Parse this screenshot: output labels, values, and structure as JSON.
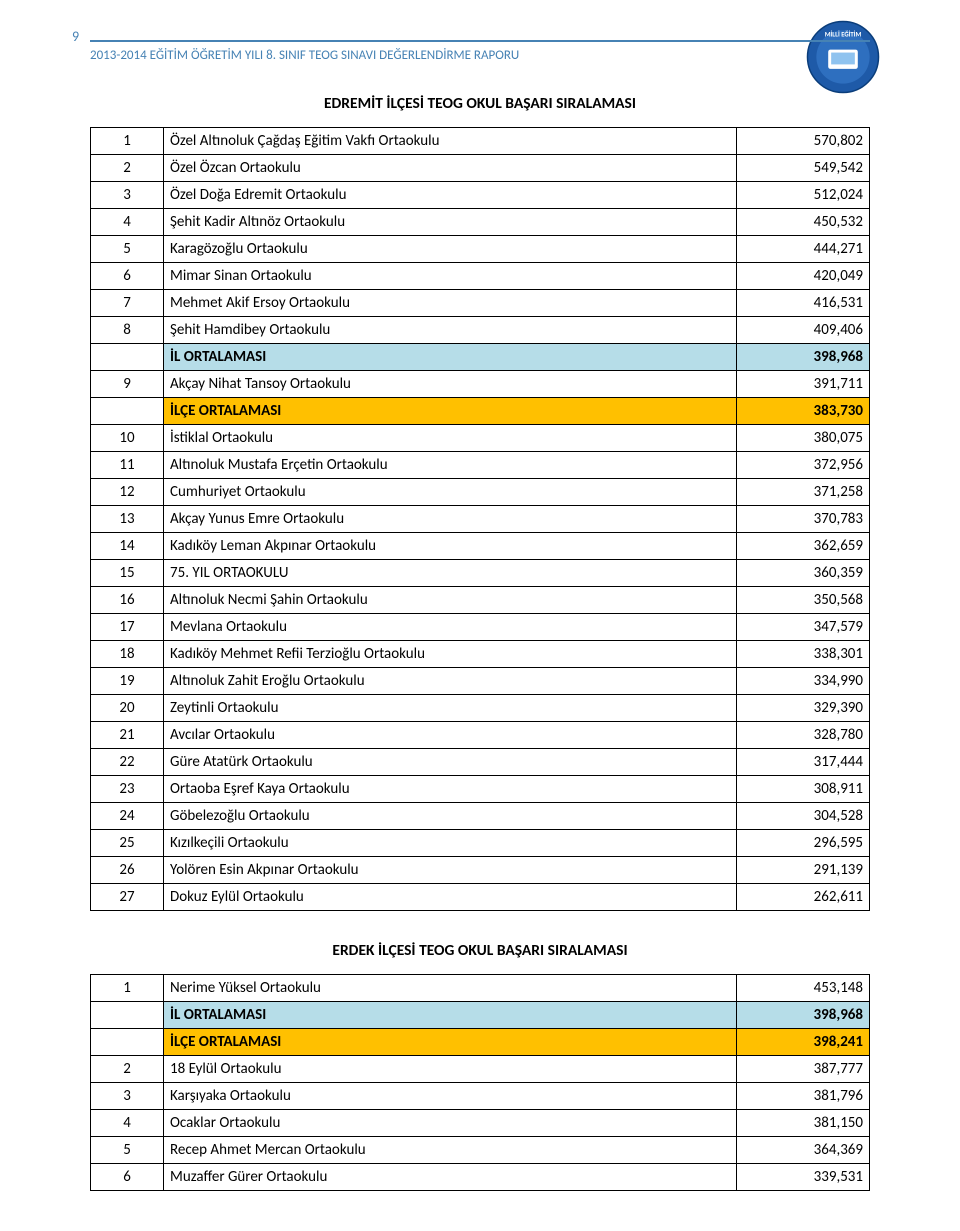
{
  "header": {
    "page_number": "9",
    "text": "2013-2014 EĞİTİM ÖĞRETİM YILI 8. SINIF TEOG SINAVI DEĞERLENDİRME RAPORU"
  },
  "colors": {
    "header_color": "#4682b4",
    "il_row_bg": "#B6DDE8",
    "ilce_row_bg": "#FFC000",
    "border": "#000000",
    "text": "#000000",
    "background": "#ffffff"
  },
  "section1": {
    "title": "EDREMİT İLÇESİ TEOG OKUL BAŞARI SIRALAMASI",
    "rows": [
      {
        "rank": "1",
        "name": "Özel Altınoluk Çağdaş Eğitim Vakfı Ortaokulu",
        "value": "570,802"
      },
      {
        "rank": "2",
        "name": "Özel Özcan Ortaokulu",
        "value": "549,542"
      },
      {
        "rank": "3",
        "name": "Özel Doğa Edremit Ortaokulu",
        "value": "512,024"
      },
      {
        "rank": "4",
        "name": "Şehit Kadir Altınöz Ortaokulu",
        "value": "450,532"
      },
      {
        "rank": "5",
        "name": "Karagözoğlu Ortaokulu",
        "value": "444,271"
      },
      {
        "rank": "6",
        "name": "Mimar Sinan Ortaokulu",
        "value": "420,049"
      },
      {
        "rank": "7",
        "name": "Mehmet Akif Ersoy Ortaokulu",
        "value": "416,531"
      },
      {
        "rank": "8",
        "name": "Şehit Hamdibey Ortaokulu",
        "value": "409,406"
      },
      {
        "rank": "",
        "name": "İL ORTALAMASI",
        "value": "398,968",
        "class": "row-il"
      },
      {
        "rank": "9",
        "name": "Akçay Nihat Tansoy Ortaokulu",
        "value": "391,711"
      },
      {
        "rank": "",
        "name": "İLÇE ORTALAMASI",
        "value": "383,730",
        "class": "row-ilce"
      },
      {
        "rank": "10",
        "name": "İstiklal Ortaokulu",
        "value": "380,075"
      },
      {
        "rank": "11",
        "name": "Altınoluk Mustafa Erçetin Ortaokulu",
        "value": "372,956"
      },
      {
        "rank": "12",
        "name": "Cumhuriyet Ortaokulu",
        "value": "371,258"
      },
      {
        "rank": "13",
        "name": "Akçay Yunus Emre Ortaokulu",
        "value": "370,783"
      },
      {
        "rank": "14",
        "name": "Kadıköy Leman Akpınar Ortaokulu",
        "value": "362,659"
      },
      {
        "rank": "15",
        "name": "75. YIL ORTAOKULU",
        "value": "360,359"
      },
      {
        "rank": "16",
        "name": "Altınoluk Necmi Şahin Ortaokulu",
        "value": "350,568"
      },
      {
        "rank": "17",
        "name": "Mevlana Ortaokulu",
        "value": "347,579"
      },
      {
        "rank": "18",
        "name": "Kadıköy Mehmet Refii Terzioğlu Ortaokulu",
        "value": "338,301"
      },
      {
        "rank": "19",
        "name": "Altınoluk Zahit Eroğlu Ortaokulu",
        "value": "334,990"
      },
      {
        "rank": "20",
        "name": "Zeytinli Ortaokulu",
        "value": "329,390"
      },
      {
        "rank": "21",
        "name": "Avcılar Ortaokulu",
        "value": "328,780"
      },
      {
        "rank": "22",
        "name": "Güre Atatürk Ortaokulu",
        "value": "317,444"
      },
      {
        "rank": "23",
        "name": "Ortaoba Eşref Kaya Ortaokulu",
        "value": "308,911"
      },
      {
        "rank": "24",
        "name": "Göbelezoğlu Ortaokulu",
        "value": "304,528"
      },
      {
        "rank": "25",
        "name": "Kızılkeçili Ortaokulu",
        "value": "296,595"
      },
      {
        "rank": "26",
        "name": "Yolören Esin Akpınar Ortaokulu",
        "value": "291,139"
      },
      {
        "rank": "27",
        "name": "Dokuz Eylül Ortaokulu",
        "value": "262,611"
      }
    ]
  },
  "section2": {
    "title": "ERDEK İLÇESİ TEOG OKUL BAŞARI SIRALAMASI",
    "rows": [
      {
        "rank": "1",
        "name": "Nerime Yüksel Ortaokulu",
        "value": "453,148"
      },
      {
        "rank": "",
        "name": "İL ORTALAMASI",
        "value": "398,968",
        "class": "row-il"
      },
      {
        "rank": "",
        "name": "İLÇE ORTALAMASI",
        "value": "398,241",
        "class": "row-ilce"
      },
      {
        "rank": "2",
        "name": "18 Eylül Ortaokulu",
        "value": "387,777"
      },
      {
        "rank": "3",
        "name": "Karşıyaka Ortaokulu",
        "value": "381,796"
      },
      {
        "rank": "4",
        "name": "Ocaklar Ortaokulu",
        "value": "381,150"
      },
      {
        "rank": "5",
        "name": "Recep Ahmet Mercan Ortaokulu",
        "value": "364,369"
      },
      {
        "rank": "6",
        "name": "Muzaffer Gürer Ortaokulu",
        "value": "339,531"
      }
    ]
  }
}
